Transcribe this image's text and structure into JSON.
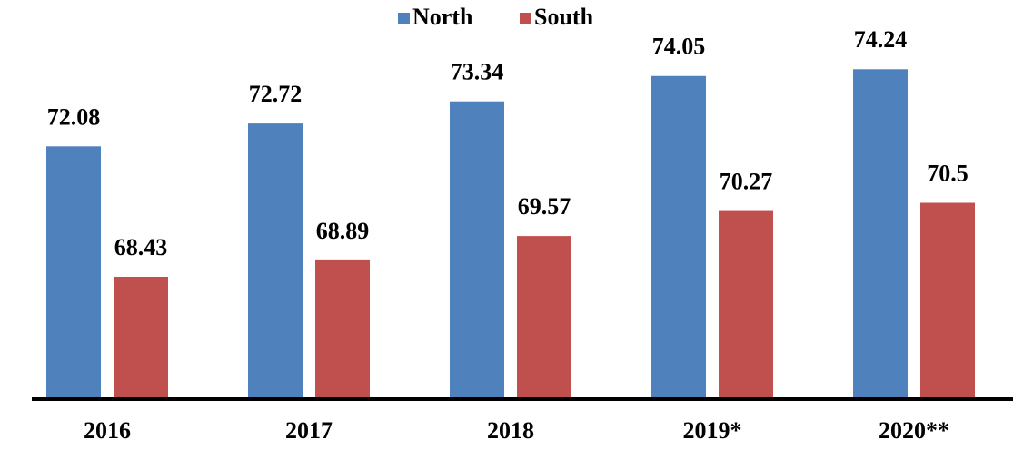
{
  "chart_data": {
    "type": "bar",
    "categories": [
      "2016",
      "2017",
      "2018",
      "2019*",
      "2020**"
    ],
    "series": [
      {
        "name": "North",
        "color": "#4f81bd",
        "values": [
          72.08,
          72.72,
          73.34,
          74.05,
          74.24
        ]
      },
      {
        "name": "South",
        "color": "#c0504d",
        "values": [
          68.43,
          68.89,
          69.57,
          70.27,
          70.5
        ]
      }
    ],
    "ylim": [
      65,
      76
    ],
    "legend": "top"
  }
}
